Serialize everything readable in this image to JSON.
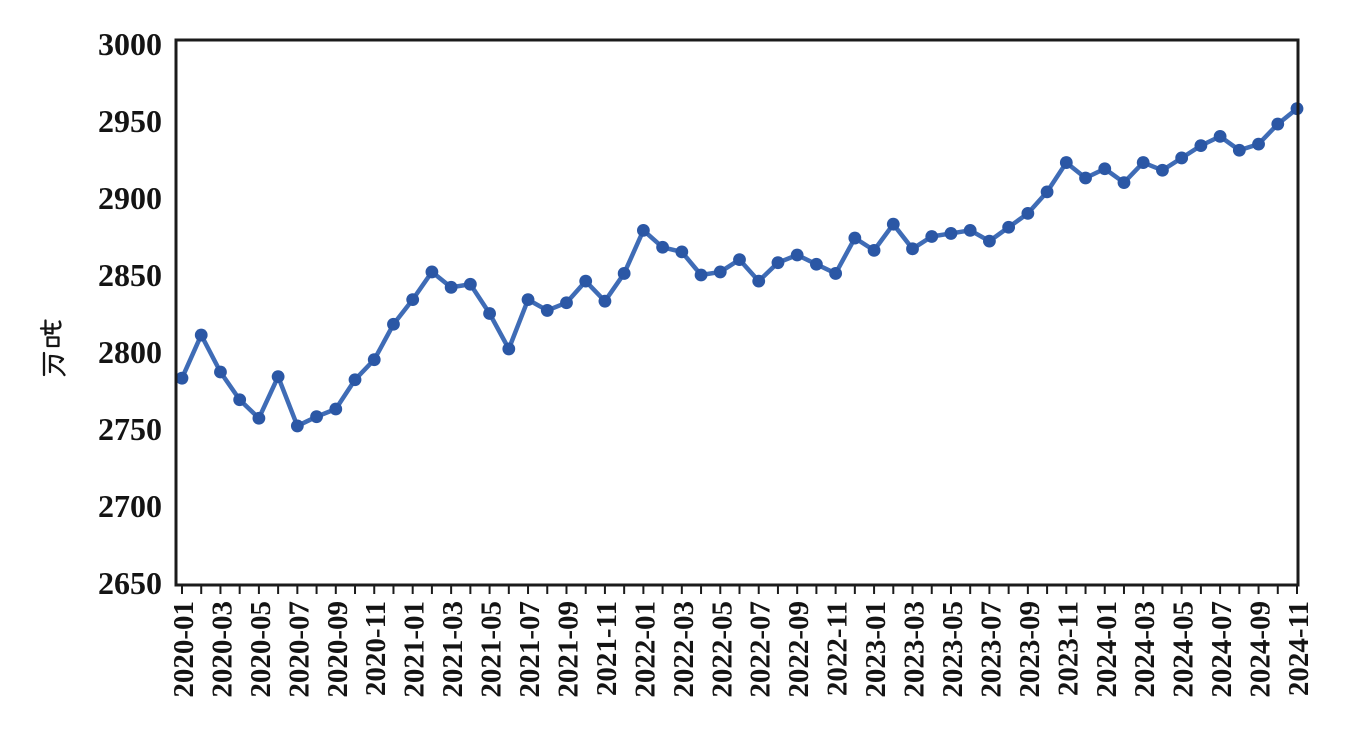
{
  "chart_data": {
    "type": "line",
    "title": "",
    "xlabel": "",
    "ylabel": "万吨",
    "ylim": [
      2650,
      3000
    ],
    "yticks": [
      2650,
      2700,
      2750,
      2800,
      2850,
      2900,
      2950,
      3000
    ],
    "xtick_label_every": 2,
    "grid": false,
    "legend_position": "none",
    "line_color": "#3f6cb6",
    "marker_color": "#2b57a5",
    "axis_color": "#1b1b1b",
    "categories": [
      "2020-01",
      "2020-02",
      "2020-03",
      "2020-04",
      "2020-05",
      "2020-06",
      "2020-07",
      "2020-08",
      "2020-09",
      "2020-10",
      "2020-11",
      "2020-12",
      "2021-01",
      "2021-02",
      "2021-03",
      "2021-04",
      "2021-05",
      "2021-06",
      "2021-07",
      "2021-08",
      "2021-09",
      "2021-10",
      "2021-11",
      "2021-12",
      "2022-01",
      "2022-02",
      "2022-03",
      "2022-04",
      "2022-05",
      "2022-06",
      "2022-07",
      "2022-08",
      "2022-09",
      "2022-10",
      "2022-11",
      "2022-12",
      "2023-01",
      "2023-02",
      "2023-03",
      "2023-04",
      "2023-05",
      "2023-06",
      "2023-07",
      "2023-08",
      "2023-09",
      "2023-10",
      "2023-11",
      "2023-12",
      "2024-01",
      "2024-02",
      "2024-03",
      "2024-04",
      "2024-05",
      "2024-06",
      "2024-07",
      "2024-08",
      "2024-09",
      "2024-10",
      "2024-11"
    ],
    "series": [
      {
        "name": "",
        "values": [
          2783,
          2811,
          2787,
          2769,
          2757,
          2784,
          2752,
          2758,
          2763,
          2782,
          2795,
          2818,
          2834,
          2852,
          2842,
          2844,
          2825,
          2802,
          2834,
          2827,
          2832,
          2846,
          2833,
          2851,
          2879,
          2868,
          2865,
          2850,
          2852,
          2860,
          2846,
          2858,
          2863,
          2857,
          2851,
          2874,
          2866,
          2883,
          2867,
          2875,
          2877,
          2879,
          2872,
          2881,
          2890,
          2904,
          2923,
          2913,
          2919,
          2910,
          2923,
          2918,
          2926,
          2934,
          2940,
          2931,
          2935,
          2948,
          2958
        ]
      }
    ]
  },
  "figure": {
    "background": "#ffffff"
  }
}
